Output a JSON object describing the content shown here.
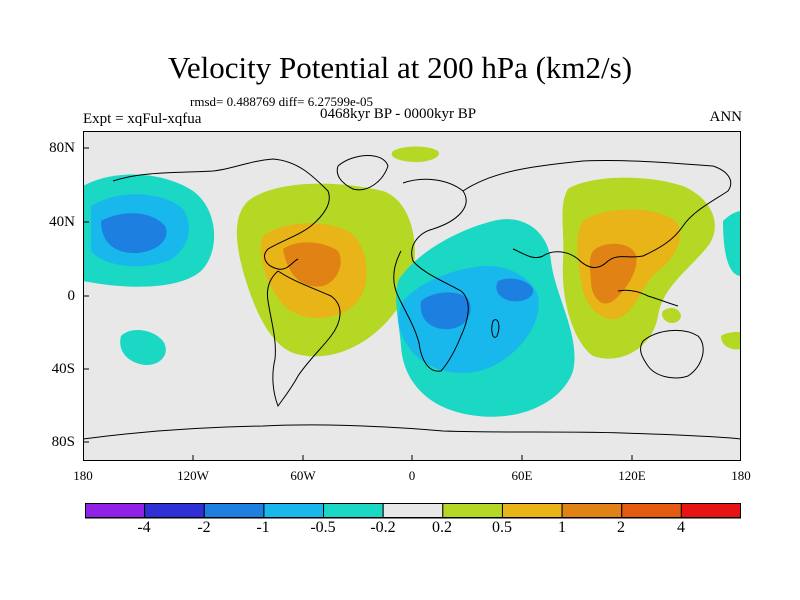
{
  "title": "Velocity Potential at 200 hPa (km2/s)",
  "stats": {
    "rmsd_text": "rmsd= 0.488769 diff= 6.27599e-05"
  },
  "experiment": "Expt = xqFul-xqfua",
  "period": "0468kyr BP - 0000kyr BP",
  "season": "ANN",
  "axes": {
    "y_ticks": [
      "80N",
      "40N",
      "0",
      "40S",
      "80S"
    ],
    "x_ticks": [
      "180",
      "120W",
      "60W",
      "0",
      "60E",
      "120E",
      "180"
    ]
  },
  "colorbar": {
    "labels": [
      "-4",
      "-2",
      "-1",
      "-0.5",
      "-0.2",
      "0.2",
      "0.5",
      "1",
      "2",
      "4"
    ],
    "colors": [
      "#8f22e6",
      "#2f2fd8",
      "#1d80e0",
      "#19b8ec",
      "#1ad8c4",
      "#e8e8e8",
      "#b4d824",
      "#e8b418",
      "#e08214",
      "#e45a10",
      "#e81414"
    ]
  },
  "palette": {
    "ocean_background": "#e8e8e8",
    "coastline": "#000000"
  }
}
